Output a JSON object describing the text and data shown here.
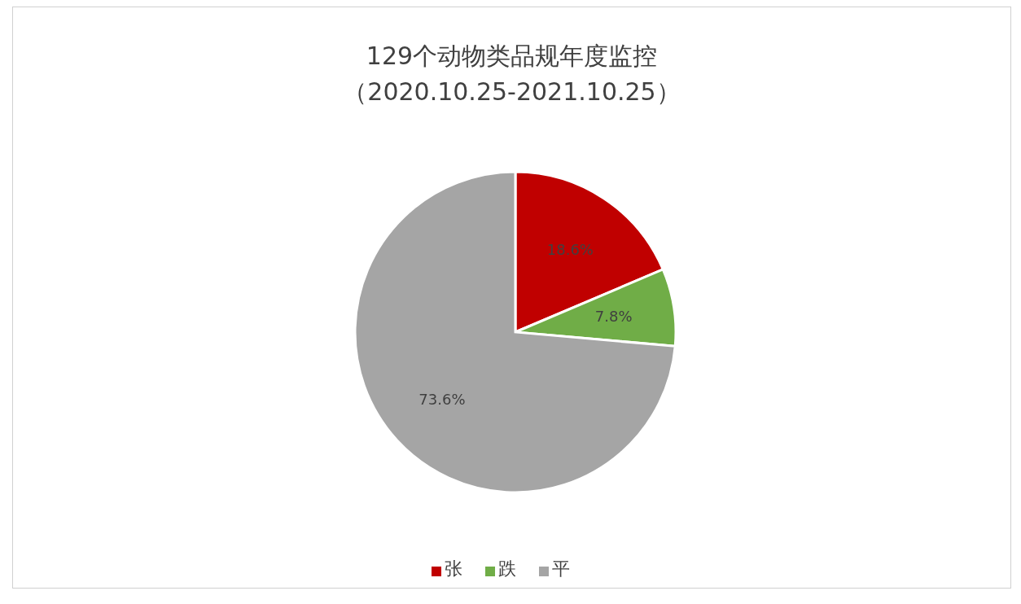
{
  "chart_data": {
    "type": "pie",
    "title": "129个动物类品规年度监控",
    "subtitle": "（2020.10.25-2021.10.25）",
    "categories": [
      "张",
      "跌",
      "平"
    ],
    "values": [
      18.6,
      7.8,
      73.6
    ],
    "colors": [
      "#c00000",
      "#70ad47",
      "#a5a5a5"
    ],
    "value_labels": [
      "18.6%",
      "7.8%",
      "73.6%"
    ],
    "legend": "bottom"
  }
}
